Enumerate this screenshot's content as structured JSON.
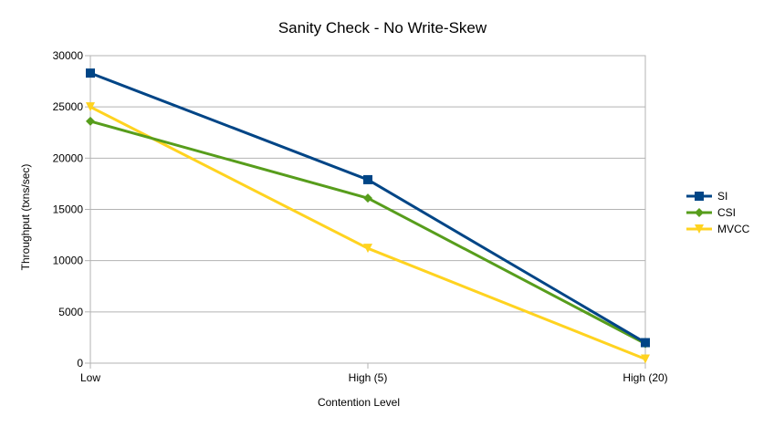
{
  "chart_data": {
    "type": "line",
    "title": "Sanity Check - No Write-Skew",
    "xlabel": "Contention Level",
    "ylabel": "Throughput (txns/sec)",
    "categories": [
      "Low",
      "High (5)",
      "High (20)"
    ],
    "ylim": [
      0,
      30000
    ],
    "yticks": [
      0,
      5000,
      10000,
      15000,
      20000,
      25000,
      30000
    ],
    "grid": true,
    "legend_position": "right",
    "series": [
      {
        "name": "SI",
        "values": [
          28300,
          17900,
          2000
        ],
        "color": "#004586",
        "marker": "square"
      },
      {
        "name": "CSI",
        "values": [
          23600,
          16100,
          1900
        ],
        "color": "#579d1c",
        "marker": "diamond"
      },
      {
        "name": "MVCC",
        "values": [
          25000,
          11200,
          400
        ],
        "color": "#ffd320",
        "marker": "triangle-down"
      }
    ]
  }
}
